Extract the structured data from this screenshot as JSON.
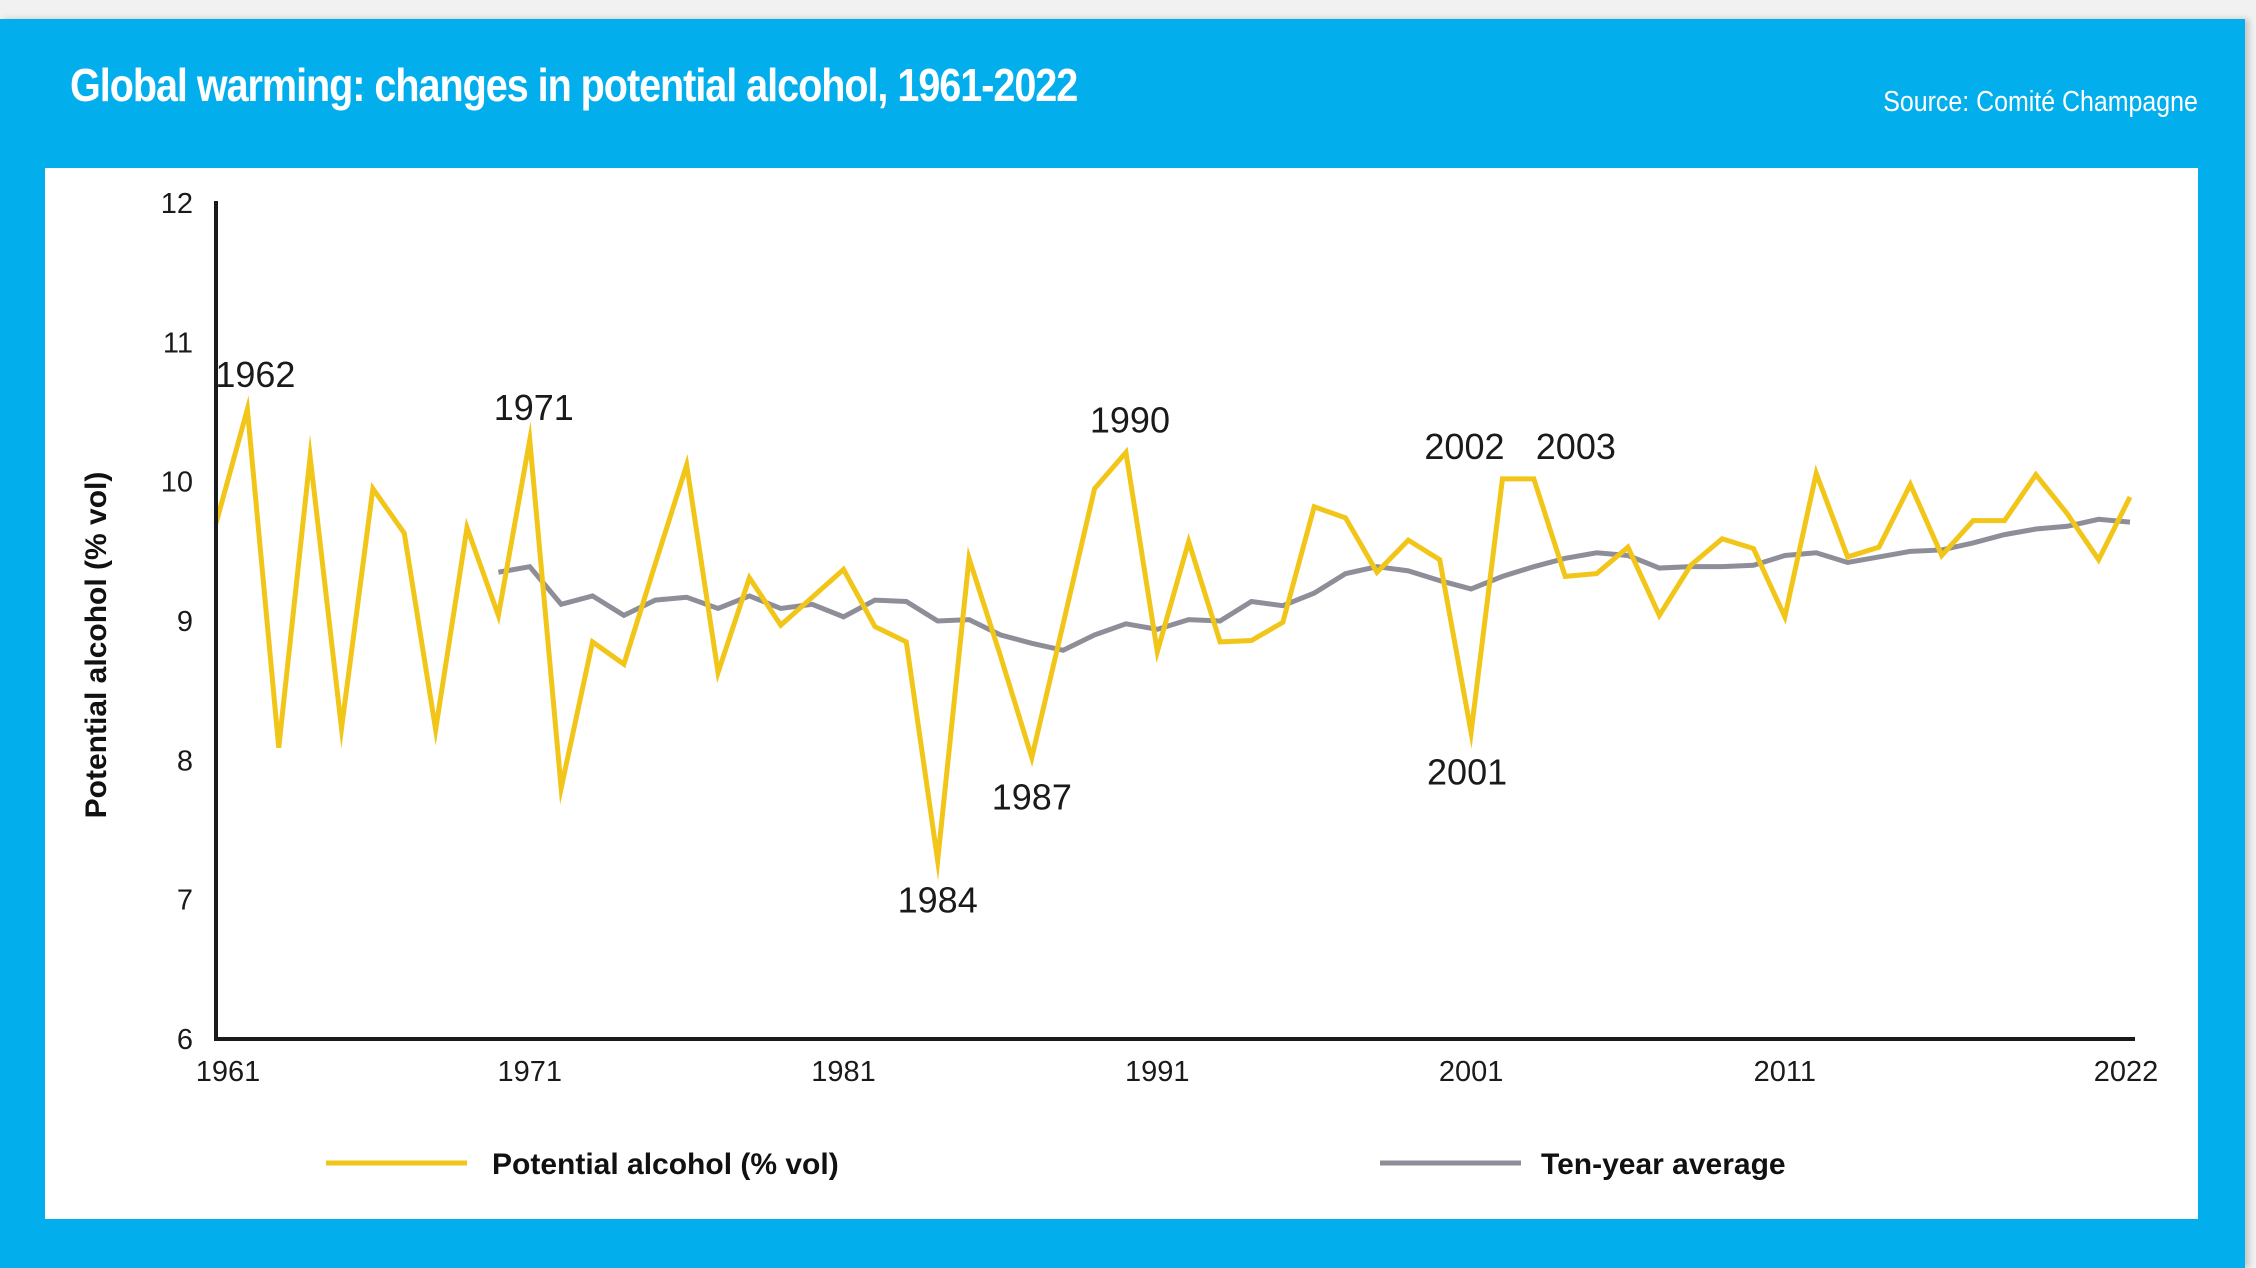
{
  "header": {
    "title": "Global warming: changes in potential alcohol, 1961-2022",
    "source": "Source: Comité Champagne"
  },
  "colors": {
    "frame": "#02AEEC",
    "potential_alcohol": "#F2C519",
    "ten_year_average": "#8E8E98",
    "axis": "#1a1a1a"
  },
  "chart_data": {
    "type": "line",
    "title": "Global warming: changes in potential alcohol, 1961-2022",
    "xlabel": "",
    "ylabel": "Potential alcohol (% vol)",
    "xlim": [
      1961,
      2022
    ],
    "ylim": [
      6,
      12
    ],
    "grid": false,
    "legend_position": "bottom",
    "y_ticks": [
      "6",
      "7",
      "8",
      "9",
      "10",
      "11",
      "12"
    ],
    "x_ticks": [
      {
        "year": 1961,
        "label": "1961"
      },
      {
        "year": 1971,
        "label": "1971"
      },
      {
        "year": 1981,
        "label": "1981"
      },
      {
        "year": 1991,
        "label": "1991"
      },
      {
        "year": 2001,
        "label": "2001"
      },
      {
        "year": 2011,
        "label": "2011"
      },
      {
        "year": 2022,
        "label": "2022"
      }
    ],
    "series": [
      {
        "name": "Potential alcohol (% vol)",
        "key": "potential_alcohol",
        "start_year": 1961,
        "values": [
          9.7,
          10.52,
          8.09,
          10.18,
          8.23,
          9.95,
          9.63,
          8.22,
          9.67,
          9.04,
          10.3,
          7.8,
          8.85,
          8.69,
          9.41,
          10.12,
          8.63,
          9.31,
          8.97,
          9.17,
          9.37,
          8.96,
          8.85,
          7.28,
          9.45,
          8.75,
          8.02,
          8.98,
          9.95,
          10.21,
          8.78,
          9.57,
          8.85,
          8.86,
          8.99,
          9.82,
          9.74,
          9.35,
          9.58,
          9.44,
          8.2,
          10.02,
          10.02,
          9.32,
          9.34,
          9.53,
          9.04,
          9.4,
          9.59,
          9.52,
          9.03,
          10.06,
          9.46,
          9.53,
          9.98,
          9.47,
          9.72,
          9.72,
          10.05,
          9.77,
          9.44,
          9.89
        ]
      },
      {
        "name": "Ten-year average",
        "key": "ten_year_average",
        "start_year": 1970,
        "values": [
          9.35,
          9.39,
          9.12,
          9.18,
          9.04,
          9.15,
          9.17,
          9.09,
          9.18,
          9.09,
          9.12,
          9.03,
          9.15,
          9.14,
          9.0,
          9.01,
          8.9,
          8.84,
          8.79,
          8.9,
          8.98,
          8.94,
          9.01,
          9.0,
          9.14,
          9.11,
          9.2,
          9.34,
          9.39,
          9.36,
          9.29,
          9.23,
          9.32,
          9.39,
          9.45,
          9.49,
          9.47,
          9.38,
          9.39,
          9.39,
          9.4,
          9.47,
          9.49,
          9.42,
          9.46,
          9.5,
          9.51,
          9.56,
          9.62,
          9.66,
          9.68,
          9.73,
          9.71
        ]
      }
    ],
    "annotations": [
      {
        "label": "1962",
        "year": 1962,
        "position": "above"
      },
      {
        "label": "1971",
        "year": 1971,
        "position": "above"
      },
      {
        "label": "1984",
        "year": 1984,
        "position": "below"
      },
      {
        "label": "1987",
        "year": 1987,
        "position": "below"
      },
      {
        "label": "1990",
        "year": 1990,
        "position": "above"
      },
      {
        "label": "2001",
        "year": 2001,
        "position": "below"
      },
      {
        "label": "2002",
        "year": 2002,
        "position": "above-left"
      },
      {
        "label": "2003",
        "year": 2003,
        "position": "above-right"
      }
    ]
  },
  "legend": {
    "items": [
      {
        "label": "Potential alcohol (% vol)",
        "key": "potential_alcohol"
      },
      {
        "label": "Ten-year average",
        "key": "ten_year_average"
      }
    ]
  }
}
